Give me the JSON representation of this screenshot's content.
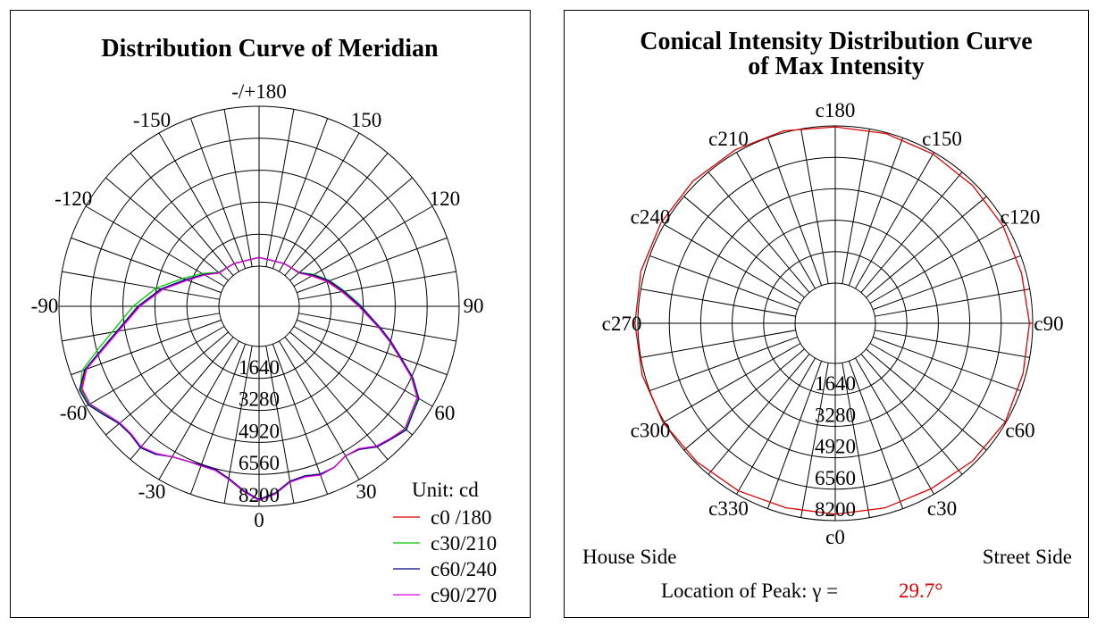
{
  "chart_data": [
    {
      "type": "polar",
      "title": "Distribution Curve of  Meridian",
      "unit_label": "Unit: cd",
      "radial_ticks": [
        "1640",
        "3280",
        "4920",
        "6560",
        "8200"
      ],
      "rmax": 8200,
      "angle_labels": [
        {
          "deg": 180,
          "text": "-/+180"
        },
        {
          "deg": 150,
          "text": "150"
        },
        {
          "deg": 120,
          "text": "120"
        },
        {
          "deg": 90,
          "text": "90"
        },
        {
          "deg": 60,
          "text": "60"
        },
        {
          "deg": 30,
          "text": "30"
        },
        {
          "deg": 0,
          "text": "0"
        },
        {
          "deg": -30,
          "text": "-30"
        },
        {
          "deg": -60,
          "text": "-60"
        },
        {
          "deg": -90,
          "text": "-90"
        },
        {
          "deg": -120,
          "text": "-120"
        },
        {
          "deg": -150,
          "text": "-150"
        }
      ],
      "legend": [
        "c0 /180",
        "c30/210",
        "c60/240",
        "c90/270"
      ],
      "series": [
        {
          "name": "c0 /180",
          "color": "#e00000",
          "points": [
            [
              -180,
              450
            ],
            [
              -150,
              480
            ],
            [
              -140,
              520
            ],
            [
              -130,
              600
            ],
            [
              -120,
              1200
            ],
            [
              -110,
              1900
            ],
            [
              -100,
              3000
            ],
            [
              -90,
              4100
            ],
            [
              -80,
              5300
            ],
            [
              -75,
              6200
            ],
            [
              -70,
              7400
            ],
            [
              -65,
              8000
            ],
            [
              -60,
              8000
            ],
            [
              -55,
              7600
            ],
            [
              -50,
              7300
            ],
            [
              -45,
              7250
            ],
            [
              -40,
              7400
            ],
            [
              -35,
              7200
            ],
            [
              -30,
              6850
            ],
            [
              -25,
              6700
            ],
            [
              -20,
              6600
            ],
            [
              -15,
              6600
            ],
            [
              -10,
              6900
            ],
            [
              -5,
              7400
            ],
            [
              0,
              7850
            ],
            [
              5,
              7550
            ],
            [
              10,
              7050
            ],
            [
              15,
              6950
            ],
            [
              20,
              7100
            ],
            [
              25,
              7050
            ],
            [
              30,
              6800
            ],
            [
              35,
              6900
            ],
            [
              40,
              7350
            ],
            [
              45,
              7550
            ],
            [
              50,
              7750
            ],
            [
              55,
              7500
            ],
            [
              60,
              7350
            ],
            [
              65,
              6600
            ],
            [
              70,
              5650
            ],
            [
              75,
              4900
            ],
            [
              80,
              4200
            ],
            [
              90,
              3100
            ],
            [
              100,
              2300
            ],
            [
              110,
              1700
            ],
            [
              120,
              1100
            ],
            [
              130,
              600
            ],
            [
              140,
              520
            ],
            [
              150,
              480
            ],
            [
              180,
              450
            ]
          ]
        },
        {
          "name": "c30/210",
          "color": "#00cc00",
          "points": [
            [
              -180,
              450
            ],
            [
              -150,
              480
            ],
            [
              -140,
              520
            ],
            [
              -130,
              650
            ],
            [
              -120,
              1300
            ],
            [
              -110,
              2100
            ],
            [
              -100,
              3300
            ],
            [
              -90,
              4400
            ],
            [
              -80,
              5600
            ],
            [
              -75,
              6500
            ],
            [
              -70,
              7600
            ],
            [
              -65,
              8050
            ],
            [
              -60,
              8000
            ],
            [
              -55,
              7600
            ],
            [
              -50,
              7300
            ],
            [
              -45,
              7250
            ],
            [
              -40,
              7400
            ],
            [
              -35,
              7200
            ],
            [
              -30,
              6850
            ],
            [
              -25,
              6700
            ],
            [
              -20,
              6600
            ],
            [
              -15,
              6600
            ],
            [
              -10,
              6900
            ],
            [
              -5,
              7400
            ],
            [
              0,
              7850
            ],
            [
              5,
              7550
            ],
            [
              10,
              7050
            ],
            [
              15,
              6950
            ],
            [
              20,
              7100
            ],
            [
              25,
              7050
            ],
            [
              30,
              6800
            ],
            [
              35,
              6900
            ],
            [
              40,
              7350
            ],
            [
              45,
              7550
            ],
            [
              50,
              7750
            ],
            [
              55,
              7500
            ],
            [
              60,
              7350
            ],
            [
              65,
              6600
            ],
            [
              70,
              5650
            ],
            [
              75,
              4900
            ],
            [
              80,
              4200
            ],
            [
              90,
              3200
            ],
            [
              100,
              2400
            ],
            [
              110,
              1800
            ],
            [
              120,
              1200
            ],
            [
              130,
              650
            ],
            [
              140,
              520
            ],
            [
              150,
              480
            ],
            [
              180,
              450
            ]
          ]
        },
        {
          "name": "c60/240",
          "color": "#00008b",
          "points": [
            [
              -180,
              450
            ],
            [
              -150,
              480
            ],
            [
              -140,
              520
            ],
            [
              -130,
              620
            ],
            [
              -120,
              1200
            ],
            [
              -110,
              1950
            ],
            [
              -100,
              3050
            ],
            [
              -90,
              4150
            ],
            [
              -80,
              5350
            ],
            [
              -75,
              6250
            ],
            [
              -70,
              7450
            ],
            [
              -65,
              8100
            ],
            [
              -60,
              8050
            ],
            [
              -55,
              7650
            ],
            [
              -50,
              7300
            ],
            [
              -45,
              7250
            ],
            [
              -40,
              7400
            ],
            [
              -35,
              7200
            ],
            [
              -30,
              6850
            ],
            [
              -25,
              6700
            ],
            [
              -20,
              6600
            ],
            [
              -15,
              6600
            ],
            [
              -10,
              6900
            ],
            [
              -5,
              7400
            ],
            [
              0,
              7850
            ],
            [
              5,
              7550
            ],
            [
              10,
              7050
            ],
            [
              15,
              6950
            ],
            [
              20,
              7100
            ],
            [
              25,
              7050
            ],
            [
              30,
              6800
            ],
            [
              35,
              6900
            ],
            [
              40,
              7350
            ],
            [
              45,
              7550
            ],
            [
              50,
              7800
            ],
            [
              55,
              7550
            ],
            [
              60,
              7400
            ],
            [
              65,
              6650
            ],
            [
              70,
              5700
            ],
            [
              75,
              4950
            ],
            [
              80,
              4250
            ],
            [
              90,
              3150
            ],
            [
              100,
              2350
            ],
            [
              110,
              1750
            ],
            [
              120,
              1150
            ],
            [
              130,
              620
            ],
            [
              140,
              520
            ],
            [
              150,
              480
            ],
            [
              180,
              450
            ]
          ]
        },
        {
          "name": "c90/270",
          "color": "#e000e0",
          "points": [
            [
              -180,
              450
            ],
            [
              -150,
              480
            ],
            [
              -140,
              520
            ],
            [
              -130,
              600
            ],
            [
              -120,
              1150
            ],
            [
              -110,
              1850
            ],
            [
              -100,
              2950
            ],
            [
              -90,
              4050
            ],
            [
              -80,
              5250
            ],
            [
              -75,
              6150
            ],
            [
              -70,
              7350
            ],
            [
              -65,
              7950
            ],
            [
              -60,
              7950
            ],
            [
              -55,
              7550
            ],
            [
              -50,
              7250
            ],
            [
              -45,
              7200
            ],
            [
              -40,
              7350
            ],
            [
              -35,
              7150
            ],
            [
              -30,
              6850
            ],
            [
              -25,
              6700
            ],
            [
              -20,
              6650
            ],
            [
              -15,
              6650
            ],
            [
              -10,
              6950
            ],
            [
              -5,
              7450
            ],
            [
              0,
              7900
            ],
            [
              5,
              7600
            ],
            [
              10,
              7100
            ],
            [
              15,
              7000
            ],
            [
              20,
              7150
            ],
            [
              25,
              7050
            ],
            [
              30,
              6800
            ],
            [
              35,
              6850
            ],
            [
              40,
              7300
            ],
            [
              45,
              7500
            ],
            [
              50,
              7700
            ],
            [
              55,
              7450
            ],
            [
              60,
              7300
            ],
            [
              65,
              6550
            ],
            [
              70,
              5600
            ],
            [
              75,
              4850
            ],
            [
              80,
              4150
            ],
            [
              90,
              3050
            ],
            [
              100,
              2250
            ],
            [
              110,
              1650
            ],
            [
              120,
              1050
            ],
            [
              130,
              600
            ],
            [
              140,
              520
            ],
            [
              150,
              480
            ],
            [
              180,
              450
            ]
          ]
        }
      ]
    },
    {
      "type": "polar",
      "title": [
        "Conical Intensity Distribution Curve",
        "of  Max Intensity"
      ],
      "radial_ticks": [
        "1640",
        "3280",
        "4920",
        "6560",
        "8200"
      ],
      "rmax": 8200,
      "angle_labels": [
        {
          "deg": 0,
          "text": "c0"
        },
        {
          "deg": 30,
          "text": "c30"
        },
        {
          "deg": 60,
          "text": "c60"
        },
        {
          "deg": 90,
          "text": "c90"
        },
        {
          "deg": 120,
          "text": "c120"
        },
        {
          "deg": 150,
          "text": "c150"
        },
        {
          "deg": 180,
          "text": "c180"
        },
        {
          "deg": 210,
          "text": "c210"
        },
        {
          "deg": 240,
          "text": "c240"
        },
        {
          "deg": 270,
          "text": "c270"
        },
        {
          "deg": 300,
          "text": "c300"
        },
        {
          "deg": 330,
          "text": "c330"
        }
      ],
      "house_side": "House Side",
      "street_side": "Street Side",
      "peak_label": "Location of  Peak:  γ =",
      "peak_value": "29.7°",
      "series": [
        {
          "name": "max intensity",
          "color": "#e00000",
          "points": [
            [
              0,
              7870
            ],
            [
              15,
              7880
            ],
            [
              30,
              7880
            ],
            [
              45,
              8050
            ],
            [
              60,
              8150
            ],
            [
              75,
              8040
            ],
            [
              90,
              8030
            ],
            [
              105,
              7960
            ],
            [
              120,
              8020
            ],
            [
              135,
              8050
            ],
            [
              150,
              8100
            ],
            [
              165,
              8150
            ],
            [
              180,
              8150
            ],
            [
              195,
              8300
            ],
            [
              210,
              8350
            ],
            [
              225,
              8400
            ],
            [
              240,
              8400
            ],
            [
              255,
              8400
            ],
            [
              270,
              8350
            ],
            [
              285,
              8330
            ],
            [
              300,
              8270
            ],
            [
              315,
              8120
            ],
            [
              330,
              8000
            ],
            [
              345,
              7870
            ],
            [
              360,
              7870
            ]
          ]
        }
      ]
    }
  ]
}
